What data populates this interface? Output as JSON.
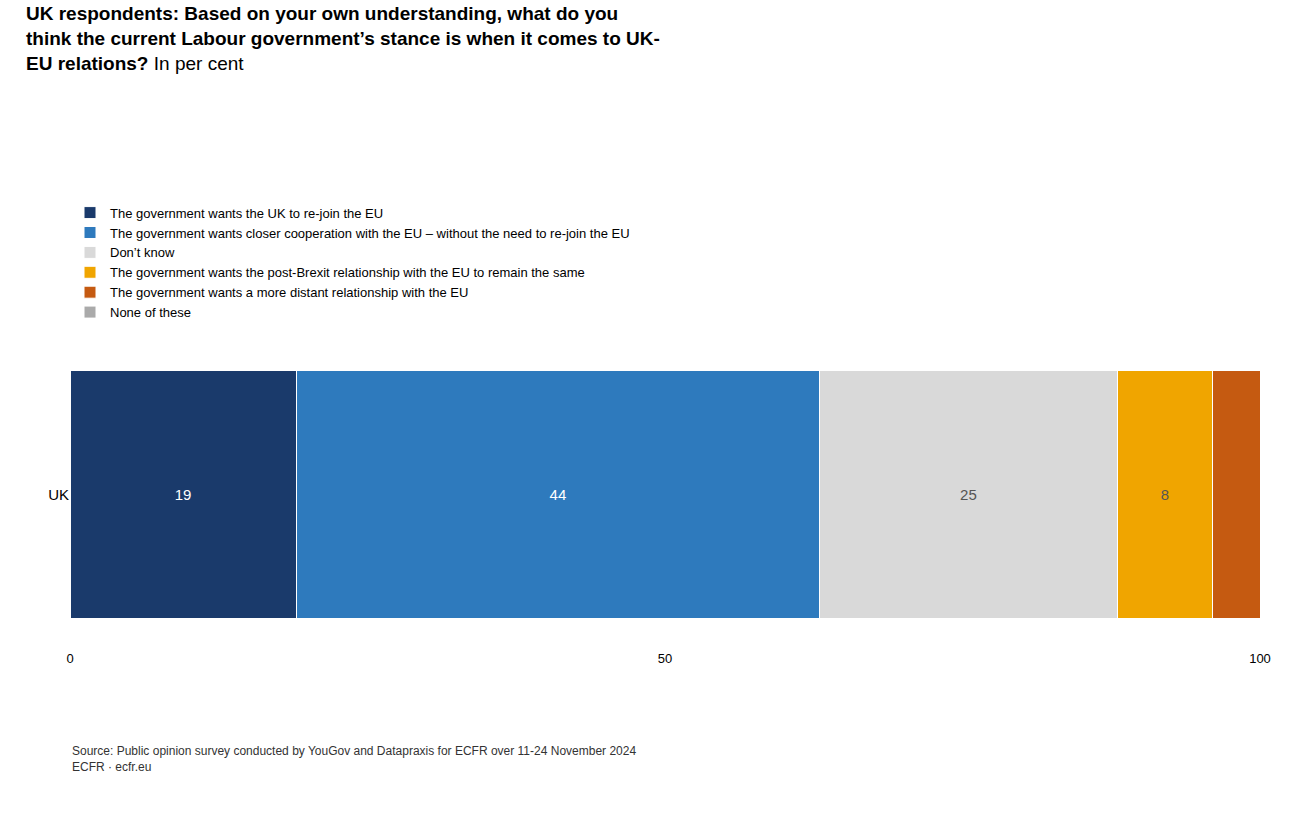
{
  "chart_data": {
    "type": "bar",
    "orientation": "horizontal",
    "stacked": true,
    "title": "UK respondents: Based on your own understanding, what do you\nthink the current Labour government’s stance is when it comes to UK-\nEU relations?",
    "subtitle": "In per cent",
    "categories": [
      "UK"
    ],
    "series": [
      {
        "name": "The government wants the UK to re-join the EU",
        "color": "#1a3a6b",
        "values": [
          19
        ],
        "data_labels": true
      },
      {
        "name": "The government wants closer cooperation with the EU – without the need to re-join the EU",
        "color": "#2e7abd",
        "values": [
          44
        ],
        "data_labels": true
      },
      {
        "name": "Don’t know",
        "color": "#d9d9d9",
        "values": [
          25
        ],
        "data_labels": true
      },
      {
        "name": "The government wants the post-Brexit relationship with the EU to remain the same",
        "color": "#f0a500",
        "values": [
          8
        ],
        "data_labels": true
      },
      {
        "name": "The government wants a more distant relationship with the EU",
        "color": "#c55a11",
        "values": [
          4
        ],
        "data_labels": false
      },
      {
        "name": "None of these",
        "color": "#aaaaaa",
        "values": [
          null
        ],
        "data_labels": false
      }
    ],
    "xlim": [
      0,
      100
    ],
    "xticks": [
      0,
      50,
      100
    ],
    "grid": false,
    "legend": "top left",
    "annotations": [
      "Source: Public opinion survey conducted by YouGov and Datapraxis for ECFR over 11-24 November 2024",
      "ECFR · ecfr.eu"
    ]
  }
}
